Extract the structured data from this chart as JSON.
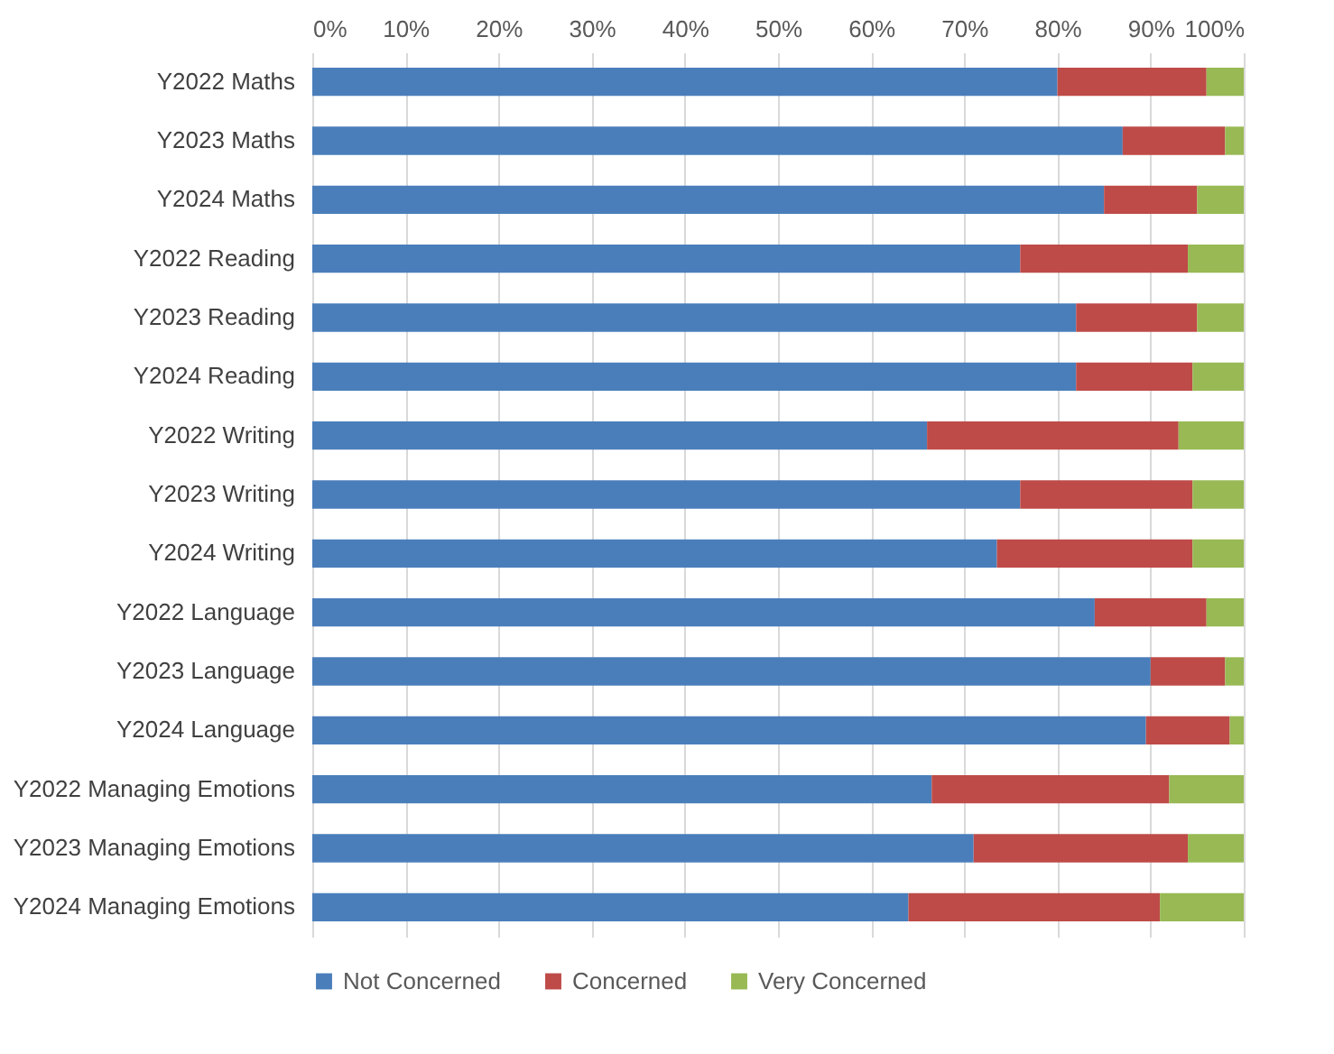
{
  "chart_data": {
    "type": "bar",
    "orientation": "horizontal",
    "stacked": true,
    "categories": [
      "Y2022 Maths",
      "Y2023 Maths",
      "Y2024 Maths",
      "Y2022 Reading",
      "Y2023 Reading",
      "Y2024 Reading",
      "Y2022 Writing",
      "Y2023 Writing",
      "Y2024 Writing",
      "Y2022 Language",
      "Y2023 Language",
      "Y2024 Language",
      "Y2022 Managing Emotions",
      "Y2023 Managing Emotions",
      "Y2024 Managing Emotions"
    ],
    "series": [
      {
        "name": "Not Concerned",
        "color": "#4a7ebb",
        "values": [
          80,
          87,
          85,
          76,
          82,
          82,
          66,
          76,
          73.5,
          84,
          90,
          89.5,
          66.5,
          71,
          64
        ]
      },
      {
        "name": "Concerned",
        "color": "#be4b48",
        "values": [
          16,
          11,
          10,
          18,
          13,
          12.5,
          27,
          18.5,
          21,
          12,
          8,
          9,
          25.5,
          23,
          27
        ]
      },
      {
        "name": "Very Concerned",
        "color": "#98b954",
        "values": [
          4,
          2,
          5,
          6,
          5,
          5.5,
          7,
          5.5,
          5.5,
          4,
          2,
          1.5,
          8,
          6,
          9
        ]
      }
    ],
    "xlim": [
      0,
      100
    ],
    "xticks": [
      {
        "value": 0,
        "label": "0%"
      },
      {
        "value": 10,
        "label": "10%"
      },
      {
        "value": 20,
        "label": "20%"
      },
      {
        "value": 30,
        "label": "30%"
      },
      {
        "value": 40,
        "label": "40%"
      },
      {
        "value": 50,
        "label": "50%"
      },
      {
        "value": 60,
        "label": "60%"
      },
      {
        "value": 70,
        "label": "70%"
      },
      {
        "value": 80,
        "label": "80%"
      },
      {
        "value": 90,
        "label": "90%"
      },
      {
        "value": 100,
        "label": "100%"
      }
    ],
    "grid": "x",
    "legend": "bottom"
  }
}
